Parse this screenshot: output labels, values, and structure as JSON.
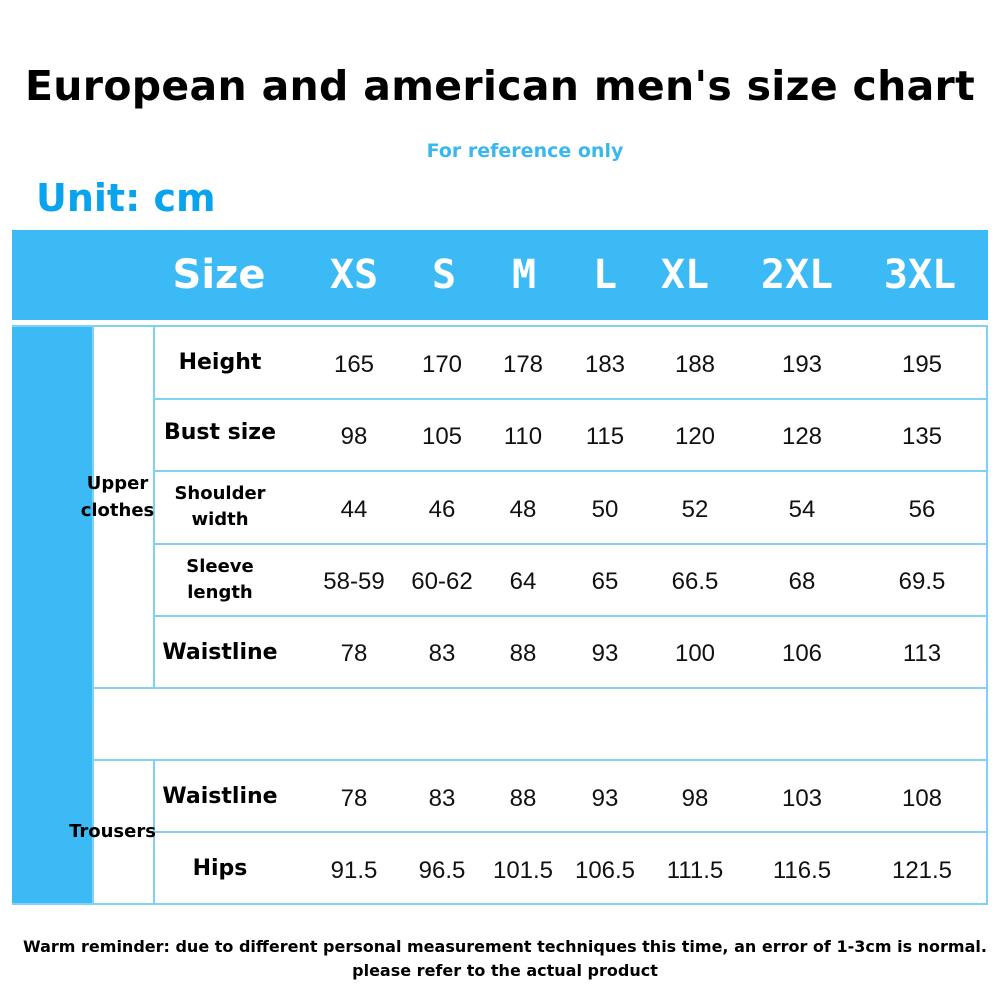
{
  "title": "European and american men's size chart",
  "subtitle": "For reference only",
  "unit": "Unit: cm",
  "header": {
    "size_label": "Size",
    "sizes": [
      "XS",
      "S",
      "M",
      "L",
      "XL",
      "2XL",
      "3XL"
    ]
  },
  "groups": {
    "upper": "Upper clothes",
    "trousers": "Trousers"
  },
  "rows": [
    {
      "label": "Height",
      "values": [
        "165",
        "170",
        "178",
        "183",
        "188",
        "193",
        "195"
      ]
    },
    {
      "label": "Bust size",
      "values": [
        "98",
        "105",
        "110",
        "115",
        "120",
        "128",
        "135"
      ]
    },
    {
      "label": "Shoulder width",
      "values": [
        "44",
        "46",
        "48",
        "50",
        "52",
        "54",
        "56"
      ]
    },
    {
      "label": "Sleeve length",
      "values": [
        "58-59",
        "60-62",
        "64",
        "65",
        "66.5",
        "68",
        "69.5"
      ]
    },
    {
      "label": "Waistline",
      "values": [
        "78",
        "83",
        "88",
        "93",
        "100",
        "106",
        "113"
      ]
    },
    {
      "label": "Waistline",
      "values": [
        "78",
        "83",
        "88",
        "93",
        "98",
        "103",
        "108"
      ]
    },
    {
      "label": "Hips",
      "values": [
        "91.5",
        "96.5",
        "101.5",
        "106.5",
        "111.5",
        "116.5",
        "121.5"
      ]
    }
  ],
  "footer": {
    "line1": "Warm reminder: due to different personal measurement techniques this time, an error of 1-3cm is normal.",
    "line2": "please refer to the actual product"
  },
  "colors": {
    "accent": "#3cbaf5",
    "unit_text": "#0aa3ee",
    "subtitle_text": "#3ab8ee",
    "grid_line": "#7fd2f3"
  }
}
